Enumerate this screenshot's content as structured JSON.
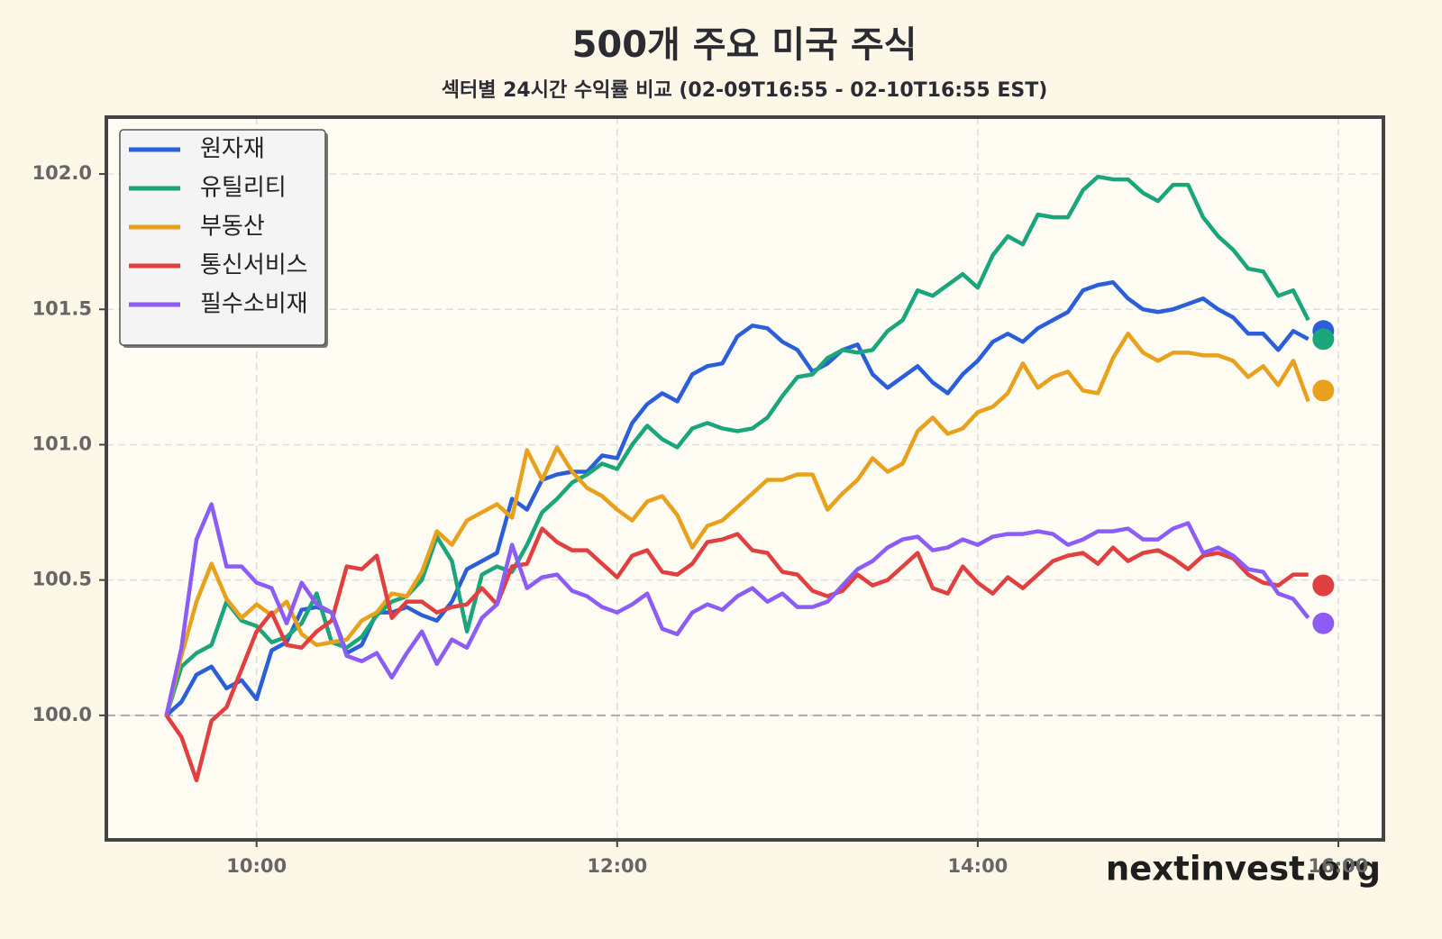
{
  "chart_data": {
    "type": "line",
    "title": "500개 주요 미국 주식",
    "subtitle": "섹터별 24시간 수익률 비교 (02-09T16:55 - 02-10T16:55 EST)",
    "watermark": "nextinvest.org",
    "x": [
      570,
      575,
      580,
      585,
      590,
      595,
      600,
      605,
      610,
      615,
      620,
      625,
      630,
      635,
      640,
      645,
      650,
      655,
      660,
      665,
      670,
      675,
      680,
      685,
      690,
      695,
      700,
      705,
      710,
      715,
      720,
      725,
      730,
      735,
      740,
      745,
      750,
      755,
      760,
      765,
      770,
      775,
      780,
      785,
      790,
      795,
      800,
      805,
      810,
      815,
      820,
      825,
      830,
      835,
      840,
      845,
      850,
      855,
      860,
      865,
      870,
      875,
      880,
      885,
      890,
      895,
      900,
      905,
      910,
      915,
      920,
      925,
      930,
      935,
      940,
      945,
      950
    ],
    "xlim": [
      550,
      975
    ],
    "xticks": [
      {
        "value": 600,
        "label": "10:00"
      },
      {
        "value": 720,
        "label": "12:00"
      },
      {
        "value": 840,
        "label": "14:00"
      },
      {
        "value": 960,
        "label": "16:00"
      }
    ],
    "ylim": [
      99.54,
      102.21
    ],
    "yticks": [
      {
        "value": 100,
        "label": "100.0"
      },
      100.5,
      {
        "value": 101,
        "label": "101.0"
      },
      101.5,
      {
        "value": 102,
        "label": "102.0"
      }
    ],
    "grid": true,
    "reference_line": 100,
    "legend": "upper left",
    "end_x": 955,
    "series": [
      {
        "name": "원자재",
        "color": "#2b5fd9",
        "end_value": 101.42,
        "values": [
          100.0,
          100.05,
          100.15,
          100.18,
          100.1,
          100.13,
          100.06,
          100.24,
          100.27,
          100.39,
          100.4,
          100.38,
          100.23,
          100.26,
          100.38,
          100.38,
          100.4,
          100.37,
          100.35,
          100.42,
          100.54,
          100.57,
          100.6,
          100.8,
          100.76,
          100.87,
          100.89,
          100.9,
          100.9,
          100.96,
          100.95,
          101.08,
          101.15,
          101.19,
          101.16,
          101.26,
          101.29,
          101.3,
          101.4,
          101.44,
          101.43,
          101.38,
          101.35,
          101.27,
          101.3,
          101.35,
          101.37,
          101.26,
          101.21,
          101.25,
          101.29,
          101.23,
          101.19,
          101.26,
          101.31,
          101.38,
          101.41,
          101.38,
          101.43,
          101.46,
          101.49,
          101.57,
          101.59,
          101.6,
          101.54,
          101.5,
          101.49,
          101.5,
          101.52,
          101.54,
          101.5,
          101.47,
          101.41,
          101.41,
          101.35,
          101.42,
          101.39
        ]
      },
      {
        "name": "유틸리티",
        "color": "#1ba57b",
        "end_value": 101.39,
        "values": [
          100.0,
          100.18,
          100.23,
          100.26,
          100.42,
          100.35,
          100.33,
          100.27,
          100.29,
          100.34,
          100.45,
          100.27,
          100.25,
          100.29,
          100.37,
          100.42,
          100.44,
          100.5,
          100.66,
          100.57,
          100.31,
          100.52,
          100.55,
          100.53,
          100.63,
          100.75,
          100.8,
          100.86,
          100.89,
          100.93,
          100.91,
          101.0,
          101.07,
          101.02,
          100.99,
          101.06,
          101.08,
          101.06,
          101.05,
          101.06,
          101.1,
          101.18,
          101.25,
          101.26,
          101.32,
          101.35,
          101.34,
          101.35,
          101.42,
          101.46,
          101.57,
          101.55,
          101.59,
          101.63,
          101.58,
          101.7,
          101.77,
          101.74,
          101.85,
          101.84,
          101.84,
          101.94,
          101.99,
          101.98,
          101.98,
          101.93,
          101.9,
          101.96,
          101.96,
          101.84,
          101.77,
          101.72,
          101.65,
          101.64,
          101.55,
          101.57,
          101.46
        ]
      },
      {
        "name": "부동산",
        "color": "#e9a11d",
        "end_value": 101.2,
        "values": [
          100.0,
          100.22,
          100.42,
          100.56,
          100.43,
          100.36,
          100.41,
          100.37,
          100.42,
          100.3,
          100.26,
          100.27,
          100.28,
          100.35,
          100.38,
          100.45,
          100.44,
          100.53,
          100.68,
          100.63,
          100.72,
          100.75,
          100.78,
          100.73,
          100.98,
          100.87,
          100.99,
          100.9,
          100.84,
          100.81,
          100.76,
          100.72,
          100.79,
          100.81,
          100.74,
          100.62,
          100.7,
          100.72,
          100.77,
          100.82,
          100.87,
          100.87,
          100.89,
          100.89,
          100.76,
          100.82,
          100.87,
          100.95,
          100.9,
          100.93,
          101.05,
          101.1,
          101.04,
          101.06,
          101.12,
          101.14,
          101.19,
          101.3,
          101.21,
          101.25,
          101.27,
          101.2,
          101.19,
          101.32,
          101.41,
          101.34,
          101.31,
          101.34,
          101.34,
          101.33,
          101.33,
          101.31,
          101.25,
          101.29,
          101.22,
          101.31,
          101.16
        ]
      },
      {
        "name": "통신서비스",
        "color": "#e0403f",
        "end_value": 100.48,
        "values": [
          100.0,
          99.92,
          99.76,
          99.98,
          100.03,
          100.17,
          100.31,
          100.38,
          100.26,
          100.25,
          100.31,
          100.35,
          100.55,
          100.54,
          100.59,
          100.36,
          100.42,
          100.42,
          100.38,
          100.4,
          100.41,
          100.47,
          100.41,
          100.55,
          100.56,
          100.69,
          100.64,
          100.61,
          100.61,
          100.56,
          100.51,
          100.59,
          100.61,
          100.53,
          100.52,
          100.56,
          100.64,
          100.65,
          100.67,
          100.61,
          100.6,
          100.53,
          100.52,
          100.46,
          100.44,
          100.46,
          100.52,
          100.48,
          100.5,
          100.55,
          100.6,
          100.47,
          100.45,
          100.55,
          100.49,
          100.45,
          100.51,
          100.47,
          100.52,
          100.57,
          100.59,
          100.6,
          100.56,
          100.62,
          100.57,
          100.6,
          100.61,
          100.58,
          100.54,
          100.59,
          100.6,
          100.58,
          100.52,
          100.49,
          100.48,
          100.52,
          100.52
        ]
      },
      {
        "name": "필수소비재",
        "color": "#8b5cf6",
        "end_value": 100.34,
        "values": [
          100.0,
          100.25,
          100.65,
          100.78,
          100.55,
          100.55,
          100.49,
          100.47,
          100.34,
          100.49,
          100.41,
          100.38,
          100.22,
          100.2,
          100.23,
          100.14,
          100.23,
          100.31,
          100.19,
          100.28,
          100.25,
          100.36,
          100.41,
          100.63,
          100.47,
          100.51,
          100.52,
          100.46,
          100.44,
          100.4,
          100.38,
          100.41,
          100.45,
          100.32,
          100.3,
          100.38,
          100.41,
          100.39,
          100.44,
          100.47,
          100.42,
          100.45,
          100.4,
          100.4,
          100.42,
          100.48,
          100.54,
          100.57,
          100.62,
          100.65,
          100.66,
          100.61,
          100.62,
          100.65,
          100.63,
          100.66,
          100.67,
          100.67,
          100.68,
          100.67,
          100.63,
          100.65,
          100.68,
          100.68,
          100.69,
          100.65,
          100.65,
          100.69,
          100.71,
          100.6,
          100.62,
          100.59,
          100.54,
          100.53,
          100.45,
          100.43,
          100.36
        ]
      }
    ]
  }
}
